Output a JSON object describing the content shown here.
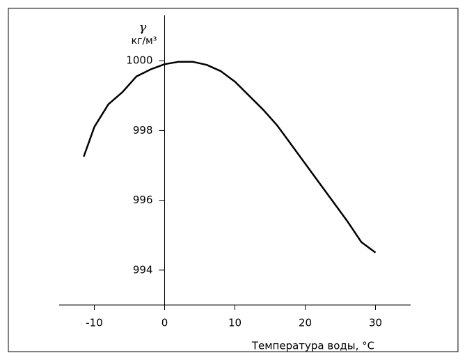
{
  "chart_data": {
    "type": "line",
    "y_label": "γ",
    "y_units": "кг/м³",
    "x_label": "Температура воды, °C",
    "x": [
      -11.5,
      -10,
      -8,
      -6,
      -4,
      -2,
      0,
      2,
      4,
      6,
      8,
      10,
      12,
      14,
      16,
      18,
      20,
      22,
      24,
      26,
      28,
      30
    ],
    "series": [
      {
        "color": "#000000",
        "values": [
          997.25,
          998.1,
          998.75,
          999.1,
          999.55,
          999.75,
          999.9,
          999.97,
          999.97,
          999.88,
          999.7,
          999.4,
          999.0,
          998.6,
          998.15,
          997.6,
          997.05,
          996.5,
          995.95,
          995.4,
          994.8,
          994.5
        ]
      }
    ],
    "xlim": [
      -15,
      35
    ],
    "ylim": [
      993,
      1001.3
    ],
    "xticks": [
      -10,
      0,
      10,
      20,
      30
    ],
    "yticks": [
      994,
      996,
      998,
      1000
    ]
  }
}
